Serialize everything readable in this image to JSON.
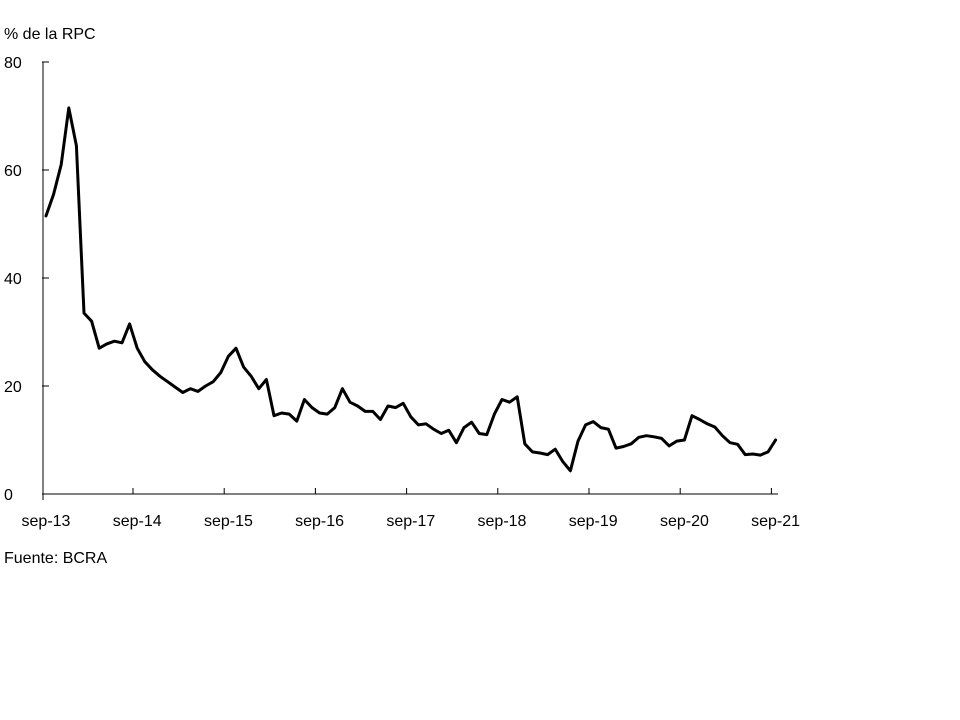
{
  "chart_data": {
    "type": "line",
    "ylabel": "% de la RPC",
    "source": "Fuente: BCRA",
    "ylim": [
      0,
      80
    ],
    "y_ticks": [
      0,
      20,
      40,
      60,
      80
    ],
    "x_tick_labels": [
      "sep-13",
      "sep-14",
      "sep-15",
      "sep-16",
      "sep-17",
      "sep-18",
      "sep-19",
      "sep-20",
      "sep-21"
    ],
    "grid": false,
    "legend": "none",
    "line_color": "#000000",
    "x_start": "sep-13",
    "series": [
      {
        "values": [
          51.5,
          55.5,
          61.0,
          71.5,
          64.5,
          33.5,
          32.0,
          27.0,
          27.8,
          28.3,
          28.0,
          31.5,
          27.0,
          24.5,
          23.0,
          21.8,
          20.8,
          19.8,
          18.8,
          19.5,
          19.0,
          20.0,
          20.8,
          22.5,
          25.5,
          27.0,
          23.5,
          21.8,
          19.5,
          21.2,
          14.5,
          15.0,
          14.8,
          13.5,
          17.5,
          16.0,
          15.0,
          14.8,
          16.0,
          19.5,
          17.0,
          16.3,
          15.3,
          15.3,
          13.8,
          16.3,
          16.0,
          16.8,
          14.3,
          12.8,
          13.0,
          12.0,
          11.2,
          11.8,
          9.5,
          12.3,
          13.3,
          11.2,
          11.0,
          14.8,
          17.5,
          17.0,
          18.0,
          9.3,
          7.8,
          7.6,
          7.3,
          8.3,
          6.0,
          4.3,
          9.8,
          12.8,
          13.4,
          12.3,
          12.0,
          8.5,
          8.8,
          9.3,
          10.5,
          10.8,
          10.6,
          10.3,
          8.9,
          9.8,
          10.0,
          14.5,
          13.8,
          13.0,
          12.4,
          10.8,
          9.5,
          9.2,
          7.3,
          7.4,
          7.2,
          7.8,
          10.0
        ]
      }
    ]
  }
}
